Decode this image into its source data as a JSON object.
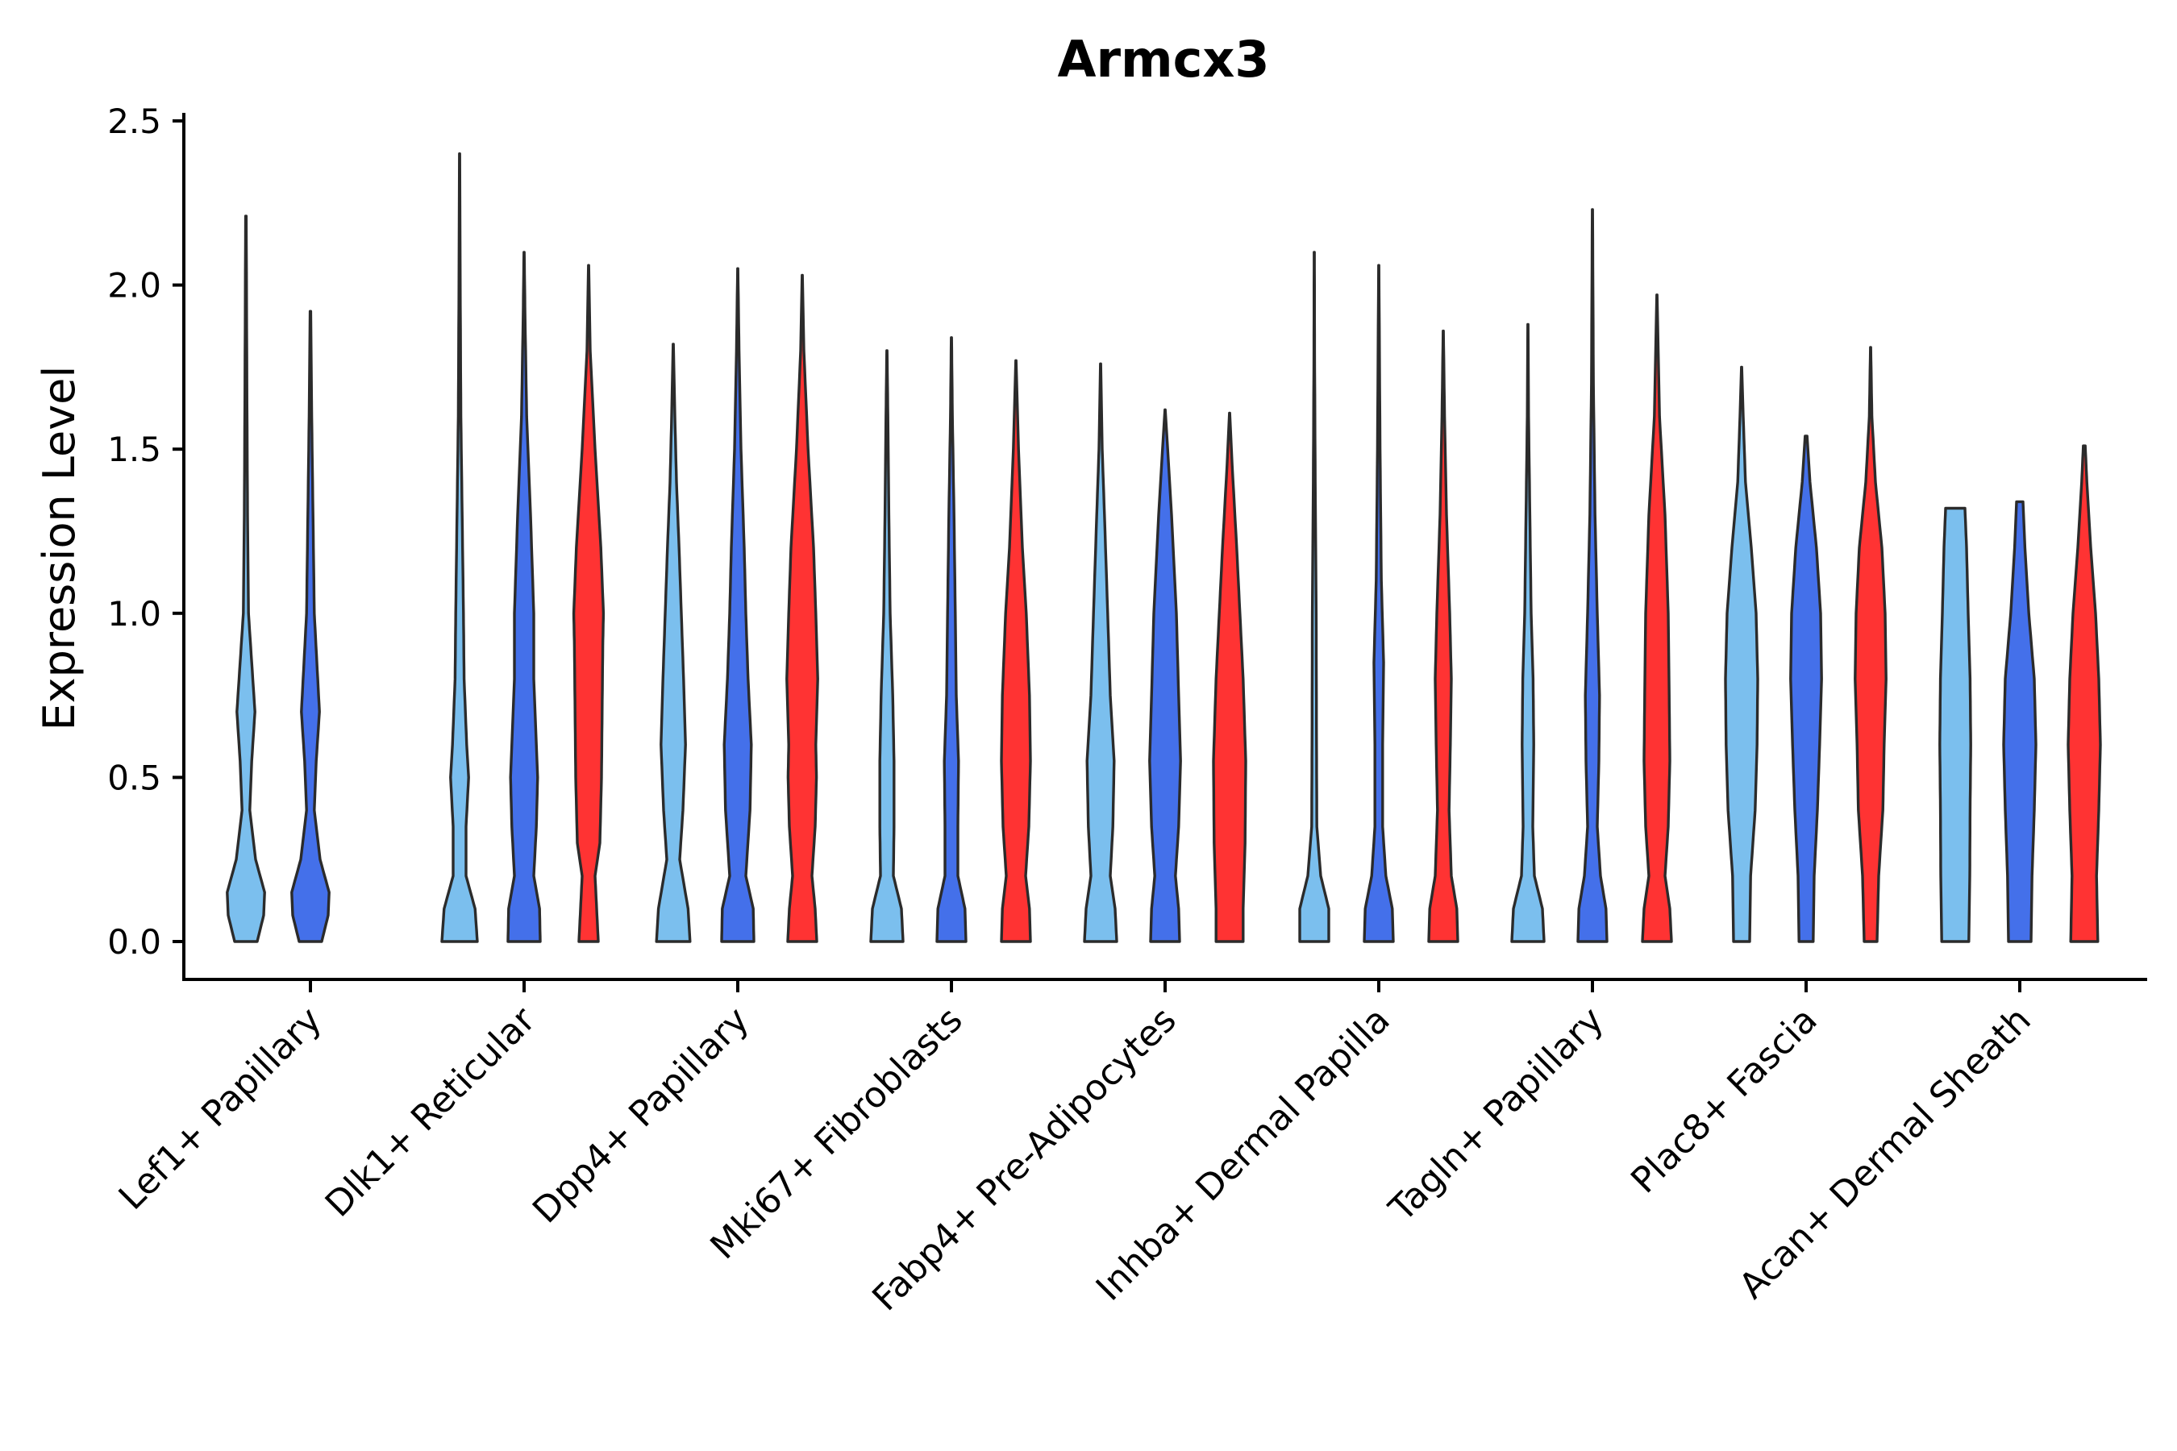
{
  "chart_data": {
    "type": "violin",
    "title": "Armcx3",
    "xlabel": "",
    "ylabel": "Expression Level",
    "ylim": [
      0,
      2.5
    ],
    "yticks": [
      "0.0",
      "0.5",
      "1.0",
      "1.5",
      "2.0",
      "2.5"
    ],
    "ytick_values": [
      0,
      0.5,
      1.0,
      1.5,
      2.0,
      2.5
    ],
    "group_colors": [
      "#7bbfee",
      "#4470ea",
      "#ff3333"
    ],
    "categories": [
      "Lef1+ Papillary",
      "Dlk1+ Reticular",
      "Dpp4+ Papillary",
      "Mki67+ Fibroblasts",
      "Fabp4+ Pre-Adipocytes",
      "Inhba+ Dermal Papilla",
      "Tagln+ Papillary",
      "Plac8+ Fascia",
      "Acan+ Dermal Sheath"
    ],
    "violins": [
      {
        "category": 0,
        "group": 0,
        "max": 2.21,
        "profile": [
          [
            0,
            0.35
          ],
          [
            0.08,
            0.55
          ],
          [
            0.15,
            0.58
          ],
          [
            0.25,
            0.3
          ],
          [
            0.4,
            0.12
          ],
          [
            0.55,
            0.18
          ],
          [
            0.7,
            0.28
          ],
          [
            0.85,
            0.18
          ],
          [
            1.0,
            0.08
          ],
          [
            1.3,
            0.05
          ],
          [
            1.7,
            0.03
          ],
          [
            2.21,
            0.01
          ]
        ]
      },
      {
        "category": 0,
        "group": 1,
        "max": 1.92,
        "profile": [
          [
            0,
            0.35
          ],
          [
            0.08,
            0.55
          ],
          [
            0.15,
            0.58
          ],
          [
            0.25,
            0.3
          ],
          [
            0.4,
            0.12
          ],
          [
            0.55,
            0.18
          ],
          [
            0.7,
            0.28
          ],
          [
            0.85,
            0.2
          ],
          [
            1.0,
            0.12
          ],
          [
            1.3,
            0.08
          ],
          [
            1.6,
            0.04
          ],
          [
            1.92,
            0.01
          ]
        ]
      },
      {
        "category": 1,
        "group": 0,
        "max": 2.4,
        "profile": [
          [
            0,
            0.55
          ],
          [
            0.1,
            0.48
          ],
          [
            0.2,
            0.2
          ],
          [
            0.35,
            0.2
          ],
          [
            0.5,
            0.28
          ],
          [
            0.6,
            0.22
          ],
          [
            0.8,
            0.14
          ],
          [
            1.0,
            0.12
          ],
          [
            1.3,
            0.08
          ],
          [
            1.6,
            0.04
          ],
          [
            2.0,
            0.02
          ],
          [
            2.4,
            0.005
          ]
        ]
      },
      {
        "category": 1,
        "group": 1,
        "max": 2.1,
        "profile": [
          [
            0,
            0.5
          ],
          [
            0.1,
            0.48
          ],
          [
            0.2,
            0.3
          ],
          [
            0.35,
            0.38
          ],
          [
            0.5,
            0.42
          ],
          [
            0.65,
            0.36
          ],
          [
            0.8,
            0.3
          ],
          [
            1.0,
            0.3
          ],
          [
            1.3,
            0.2
          ],
          [
            1.6,
            0.08
          ],
          [
            1.9,
            0.03
          ],
          [
            2.1,
            0.005
          ]
        ]
      },
      {
        "category": 1,
        "group": 2,
        "max": 2.06,
        "profile": [
          [
            0,
            0.3
          ],
          [
            0.1,
            0.25
          ],
          [
            0.2,
            0.2
          ],
          [
            0.3,
            0.35
          ],
          [
            0.5,
            0.4
          ],
          [
            0.7,
            0.42
          ],
          [
            0.9,
            0.44
          ],
          [
            1.0,
            0.46
          ],
          [
            1.2,
            0.38
          ],
          [
            1.5,
            0.2
          ],
          [
            1.8,
            0.05
          ],
          [
            2.06,
            0.005
          ]
        ]
      },
      {
        "category": 2,
        "group": 0,
        "max": 1.82,
        "profile": [
          [
            0,
            0.52
          ],
          [
            0.1,
            0.46
          ],
          [
            0.25,
            0.2
          ],
          [
            0.4,
            0.3
          ],
          [
            0.6,
            0.38
          ],
          [
            0.8,
            0.32
          ],
          [
            1.0,
            0.25
          ],
          [
            1.2,
            0.18
          ],
          [
            1.4,
            0.1
          ],
          [
            1.6,
            0.05
          ],
          [
            1.82,
            0.005
          ]
        ]
      },
      {
        "category": 2,
        "group": 1,
        "max": 2.05,
        "profile": [
          [
            0,
            0.5
          ],
          [
            0.1,
            0.48
          ],
          [
            0.2,
            0.25
          ],
          [
            0.4,
            0.38
          ],
          [
            0.6,
            0.42
          ],
          [
            0.8,
            0.32
          ],
          [
            1.0,
            0.25
          ],
          [
            1.2,
            0.2
          ],
          [
            1.5,
            0.1
          ],
          [
            1.8,
            0.04
          ],
          [
            2.05,
            0.005
          ]
        ]
      },
      {
        "category": 2,
        "group": 2,
        "max": 2.03,
        "profile": [
          [
            0,
            0.45
          ],
          [
            0.1,
            0.4
          ],
          [
            0.2,
            0.3
          ],
          [
            0.35,
            0.4
          ],
          [
            0.5,
            0.44
          ],
          [
            0.6,
            0.42
          ],
          [
            0.8,
            0.48
          ],
          [
            1.0,
            0.42
          ],
          [
            1.2,
            0.35
          ],
          [
            1.5,
            0.18
          ],
          [
            1.8,
            0.05
          ],
          [
            2.03,
            0.005
          ]
        ]
      },
      {
        "category": 3,
        "group": 0,
        "max": 1.8,
        "profile": [
          [
            0,
            0.5
          ],
          [
            0.1,
            0.45
          ],
          [
            0.2,
            0.2
          ],
          [
            0.35,
            0.22
          ],
          [
            0.55,
            0.22
          ],
          [
            0.75,
            0.18
          ],
          [
            1.0,
            0.1
          ],
          [
            1.3,
            0.06
          ],
          [
            1.6,
            0.03
          ],
          [
            1.8,
            0.005
          ]
        ]
      },
      {
        "category": 3,
        "group": 1,
        "max": 1.84,
        "profile": [
          [
            0,
            0.45
          ],
          [
            0.1,
            0.42
          ],
          [
            0.2,
            0.2
          ],
          [
            0.35,
            0.2
          ],
          [
            0.55,
            0.22
          ],
          [
            0.75,
            0.15
          ],
          [
            1.0,
            0.12
          ],
          [
            1.3,
            0.08
          ],
          [
            1.6,
            0.03
          ],
          [
            1.84,
            0.005
          ]
        ]
      },
      {
        "category": 3,
        "group": 2,
        "max": 1.77,
        "profile": [
          [
            0,
            0.45
          ],
          [
            0.1,
            0.42
          ],
          [
            0.2,
            0.3
          ],
          [
            0.35,
            0.4
          ],
          [
            0.55,
            0.45
          ],
          [
            0.75,
            0.42
          ],
          [
            1.0,
            0.32
          ],
          [
            1.2,
            0.2
          ],
          [
            1.5,
            0.08
          ],
          [
            1.77,
            0.005
          ]
        ]
      },
      {
        "category": 4,
        "group": 0,
        "max": 1.76,
        "profile": [
          [
            0,
            0.5
          ],
          [
            0.1,
            0.45
          ],
          [
            0.2,
            0.3
          ],
          [
            0.35,
            0.38
          ],
          [
            0.55,
            0.42
          ],
          [
            0.75,
            0.3
          ],
          [
            1.0,
            0.22
          ],
          [
            1.3,
            0.12
          ],
          [
            1.5,
            0.05
          ],
          [
            1.76,
            0.005
          ]
        ]
      },
      {
        "category": 4,
        "group": 1,
        "max": 1.62,
        "profile": [
          [
            0,
            0.45
          ],
          [
            0.1,
            0.42
          ],
          [
            0.2,
            0.32
          ],
          [
            0.35,
            0.42
          ],
          [
            0.55,
            0.48
          ],
          [
            0.75,
            0.42
          ],
          [
            1.0,
            0.35
          ],
          [
            1.3,
            0.2
          ],
          [
            1.5,
            0.08
          ],
          [
            1.62,
            0.005
          ]
        ]
      },
      {
        "category": 4,
        "group": 2,
        "max": 1.61,
        "profile": [
          [
            0,
            0.42
          ],
          [
            0.1,
            0.42
          ],
          [
            0.3,
            0.48
          ],
          [
            0.55,
            0.5
          ],
          [
            0.8,
            0.42
          ],
          [
            1.0,
            0.32
          ],
          [
            1.2,
            0.22
          ],
          [
            1.45,
            0.08
          ],
          [
            1.61,
            0.005
          ]
        ]
      },
      {
        "category": 5,
        "group": 0,
        "max": 2.1,
        "profile": [
          [
            0,
            0.45
          ],
          [
            0.1,
            0.45
          ],
          [
            0.2,
            0.2
          ],
          [
            0.35,
            0.08
          ],
          [
            0.6,
            0.07
          ],
          [
            1.0,
            0.06
          ],
          [
            1.4,
            0.03
          ],
          [
            1.8,
            0.01
          ],
          [
            2.1,
            0.005
          ]
        ]
      },
      {
        "category": 5,
        "group": 1,
        "max": 2.06,
        "profile": [
          [
            0,
            0.45
          ],
          [
            0.1,
            0.42
          ],
          [
            0.2,
            0.22
          ],
          [
            0.35,
            0.12
          ],
          [
            0.6,
            0.12
          ],
          [
            0.85,
            0.15
          ],
          [
            1.1,
            0.08
          ],
          [
            1.5,
            0.04
          ],
          [
            2.06,
            0.005
          ]
        ]
      },
      {
        "category": 5,
        "group": 2,
        "max": 1.86,
        "profile": [
          [
            0,
            0.45
          ],
          [
            0.1,
            0.42
          ],
          [
            0.2,
            0.25
          ],
          [
            0.4,
            0.18
          ],
          [
            0.6,
            0.22
          ],
          [
            0.8,
            0.25
          ],
          [
            1.0,
            0.2
          ],
          [
            1.3,
            0.1
          ],
          [
            1.6,
            0.04
          ],
          [
            1.86,
            0.005
          ]
        ]
      },
      {
        "category": 6,
        "group": 0,
        "max": 1.88,
        "profile": [
          [
            0,
            0.5
          ],
          [
            0.1,
            0.45
          ],
          [
            0.2,
            0.2
          ],
          [
            0.35,
            0.15
          ],
          [
            0.6,
            0.18
          ],
          [
            0.8,
            0.16
          ],
          [
            1.0,
            0.1
          ],
          [
            1.3,
            0.06
          ],
          [
            1.6,
            0.02
          ],
          [
            1.88,
            0.005
          ]
        ]
      },
      {
        "category": 6,
        "group": 1,
        "max": 2.23,
        "profile": [
          [
            0,
            0.45
          ],
          [
            0.1,
            0.42
          ],
          [
            0.2,
            0.25
          ],
          [
            0.35,
            0.15
          ],
          [
            0.55,
            0.2
          ],
          [
            0.75,
            0.22
          ],
          [
            1.0,
            0.15
          ],
          [
            1.3,
            0.08
          ],
          [
            1.7,
            0.03
          ],
          [
            2.23,
            0.005
          ]
        ]
      },
      {
        "category": 6,
        "group": 2,
        "max": 1.97,
        "profile": [
          [
            0,
            0.45
          ],
          [
            0.1,
            0.4
          ],
          [
            0.2,
            0.25
          ],
          [
            0.35,
            0.35
          ],
          [
            0.55,
            0.4
          ],
          [
            0.75,
            0.38
          ],
          [
            1.0,
            0.35
          ],
          [
            1.3,
            0.25
          ],
          [
            1.6,
            0.08
          ],
          [
            1.97,
            0.005
          ]
        ]
      },
      {
        "category": 7,
        "group": 0,
        "max": 1.75,
        "profile": [
          [
            0,
            0.25
          ],
          [
            0.2,
            0.28
          ],
          [
            0.4,
            0.42
          ],
          [
            0.6,
            0.48
          ],
          [
            0.8,
            0.5
          ],
          [
            1.0,
            0.45
          ],
          [
            1.2,
            0.3
          ],
          [
            1.4,
            0.12
          ],
          [
            1.6,
            0.05
          ],
          [
            1.75,
            0.005
          ]
        ]
      },
      {
        "category": 7,
        "group": 1,
        "max": 1.54,
        "profile": [
          [
            0,
            0.22
          ],
          [
            0.2,
            0.25
          ],
          [
            0.4,
            0.35
          ],
          [
            0.6,
            0.42
          ],
          [
            0.8,
            0.48
          ],
          [
            1.0,
            0.45
          ],
          [
            1.2,
            0.32
          ],
          [
            1.4,
            0.12
          ],
          [
            1.54,
            0.03
          ]
        ]
      },
      {
        "category": 7,
        "group": 2,
        "max": 1.81,
        "profile": [
          [
            0,
            0.2
          ],
          [
            0.2,
            0.25
          ],
          [
            0.4,
            0.38
          ],
          [
            0.6,
            0.42
          ],
          [
            0.8,
            0.48
          ],
          [
            1.0,
            0.45
          ],
          [
            1.2,
            0.35
          ],
          [
            1.4,
            0.15
          ],
          [
            1.6,
            0.04
          ],
          [
            1.81,
            0.005
          ]
        ]
      },
      {
        "category": 8,
        "group": 0,
        "max": 1.32,
        "profile": [
          [
            0,
            0.42
          ],
          [
            0.2,
            0.45
          ],
          [
            0.4,
            0.46
          ],
          [
            0.6,
            0.48
          ],
          [
            0.8,
            0.46
          ],
          [
            1.0,
            0.4
          ],
          [
            1.2,
            0.35
          ],
          [
            1.32,
            0.3
          ]
        ]
      },
      {
        "category": 8,
        "group": 1,
        "max": 1.34,
        "profile": [
          [
            0,
            0.35
          ],
          [
            0.2,
            0.38
          ],
          [
            0.4,
            0.45
          ],
          [
            0.6,
            0.5
          ],
          [
            0.8,
            0.45
          ],
          [
            1.0,
            0.28
          ],
          [
            1.2,
            0.16
          ],
          [
            1.34,
            0.1
          ]
        ]
      },
      {
        "category": 8,
        "group": 2,
        "max": 1.51,
        "profile": [
          [
            0,
            0.42
          ],
          [
            0.2,
            0.38
          ],
          [
            0.4,
            0.45
          ],
          [
            0.6,
            0.5
          ],
          [
            0.8,
            0.45
          ],
          [
            1.0,
            0.35
          ],
          [
            1.2,
            0.2
          ],
          [
            1.4,
            0.08
          ],
          [
            1.51,
            0.03
          ]
        ]
      }
    ]
  }
}
